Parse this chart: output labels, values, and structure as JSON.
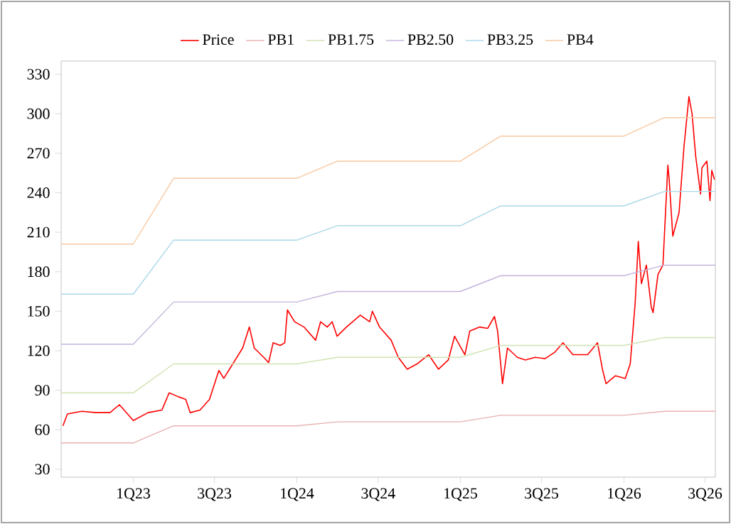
{
  "chart_data": {
    "type": "line",
    "legend": "top",
    "grid": false,
    "marker": "none",
    "line_style": "solid",
    "xlim": [
      "2022-07-24",
      "2026-07-24"
    ],
    "ylim": [
      24,
      340
    ],
    "xticks": [
      {
        "value": "2023-01-01",
        "label": "1Q23"
      },
      {
        "value": "2023-07-01",
        "label": "3Q23"
      },
      {
        "value": "2024-01-01",
        "label": "1Q24"
      },
      {
        "value": "2024-07-01",
        "label": "3Q24"
      },
      {
        "value": "2025-01-01",
        "label": "1Q25"
      },
      {
        "value": "2025-07-01",
        "label": "3Q25"
      },
      {
        "value": "2026-01-01",
        "label": "1Q26"
      },
      {
        "value": "2026-07-01",
        "label": "3Q26"
      }
    ],
    "yticks": [
      30,
      60,
      90,
      120,
      150,
      180,
      210,
      240,
      270,
      300,
      330
    ],
    "series": [
      {
        "name": "Price",
        "color": "#ff0000",
        "x": [
          "2022-07-28",
          "2022-08-07",
          "2022-09-08",
          "2022-10-10",
          "2022-11-10",
          "2022-12-01",
          "2023-01-01",
          "2023-02-03",
          "2023-03-06",
          "2023-03-22",
          "2023-04-12",
          "2023-04-28",
          "2023-05-08",
          "2023-05-30",
          "2023-06-20",
          "2023-07-11",
          "2023-07-22",
          "2023-08-11",
          "2023-09-02",
          "2023-09-17",
          "2023-09-28",
          "2023-10-19",
          "2023-10-30",
          "2023-11-09",
          "2023-11-25",
          "2023-12-05",
          "2023-12-11",
          "2023-12-27",
          "2024-01-17",
          "2024-02-12",
          "2024-02-23",
          "2024-03-09",
          "2024-03-20",
          "2024-03-31",
          "2024-04-21",
          "2024-05-22",
          "2024-06-12",
          "2024-06-18",
          "2024-07-04",
          "2024-07-30",
          "2024-08-15",
          "2024-09-04",
          "2024-09-26",
          "2024-10-22",
          "2024-11-13",
          "2024-12-05",
          "2024-12-19",
          "2025-01-11",
          "2025-01-22",
          "2025-02-13",
          "2025-03-03",
          "2025-03-18",
          "2025-03-25",
          "2025-04-05",
          "2025-04-16",
          "2025-05-08",
          "2025-05-26",
          "2025-06-17",
          "2025-07-09",
          "2025-07-31",
          "2025-08-18",
          "2025-09-09",
          "2025-10-12",
          "2025-11-03",
          "2025-11-14",
          "2025-11-22",
          "2025-12-13",
          "2026-01-04",
          "2026-01-15",
          "2026-01-26",
          "2026-02-02",
          "2026-02-09",
          "2026-02-20",
          "2026-03-03",
          "2026-03-07",
          "2026-03-18",
          "2026-03-29",
          "2026-04-09",
          "2026-04-12",
          "2026-04-20",
          "2026-05-04",
          "2026-05-15",
          "2026-05-26",
          "2026-06-02",
          "2026-06-10",
          "2026-06-21",
          "2026-06-24",
          "2026-07-05",
          "2026-07-12",
          "2026-07-16",
          "2026-07-22"
        ],
        "values": [
          63,
          72,
          74,
          73,
          73,
          79,
          67,
          73,
          75,
          88,
          85,
          83,
          73,
          75,
          83,
          105,
          99,
          110,
          122,
          138,
          122,
          115,
          111,
          126,
          124,
          126,
          151,
          142,
          138,
          128,
          142,
          138,
          142,
          131,
          138,
          147,
          142,
          150,
          138,
          128,
          115,
          106,
          110,
          117,
          106,
          113,
          131,
          117,
          135,
          138,
          137,
          146,
          135,
          95,
          122,
          115,
          113,
          115,
          114,
          119,
          126,
          117,
          117,
          126,
          106,
          95,
          101,
          99,
          110,
          156,
          203,
          171,
          185,
          153,
          149,
          178,
          185,
          261,
          250,
          207,
          225,
          275,
          313,
          300,
          268,
          239,
          259,
          264,
          234,
          257,
          250
        ]
      },
      {
        "name": "PB1",
        "color": "#e8b0b0",
        "x": [
          "2022-07-24",
          "2023-01-01",
          "2023-04-01",
          "2024-01-01",
          "2024-04-01",
          "2025-01-01",
          "2025-04-01",
          "2026-01-01",
          "2026-04-01",
          "2026-07-24"
        ],
        "values": [
          50,
          50,
          63,
          63,
          66,
          66,
          71,
          71,
          74,
          74
        ]
      },
      {
        "name": "PB1.75",
        "color": "#d0e2b0",
        "x": [
          "2022-07-24",
          "2023-01-01",
          "2023-04-01",
          "2024-01-01",
          "2024-04-01",
          "2025-01-01",
          "2025-04-01",
          "2026-01-01",
          "2026-04-01",
          "2026-07-24"
        ],
        "values": [
          88,
          88,
          110,
          110,
          115,
          115,
          124,
          124,
          130,
          130
        ]
      },
      {
        "name": "PB2.50",
        "color": "#c4b4dc",
        "x": [
          "2022-07-24",
          "2023-01-01",
          "2023-04-01",
          "2024-01-01",
          "2024-04-01",
          "2025-01-01",
          "2025-04-01",
          "2026-01-01",
          "2026-04-01",
          "2026-07-24"
        ],
        "values": [
          125,
          125,
          157,
          157,
          165,
          165,
          177,
          177,
          185,
          185
        ]
      },
      {
        "name": "PB3.25",
        "color": "#a8d8e8",
        "x": [
          "2022-07-24",
          "2023-01-01",
          "2023-04-01",
          "2024-01-01",
          "2024-04-01",
          "2025-01-01",
          "2025-04-01",
          "2026-01-01",
          "2026-04-01",
          "2026-07-24"
        ],
        "values": [
          163,
          163,
          204,
          204,
          215,
          215,
          230,
          230,
          241,
          241
        ]
      },
      {
        "name": "PB4",
        "color": "#f8c8a0",
        "x": [
          "2022-07-24",
          "2023-01-01",
          "2023-04-01",
          "2024-01-01",
          "2024-04-01",
          "2025-01-01",
          "2025-04-01",
          "2026-01-01",
          "2026-04-01",
          "2026-07-24"
        ],
        "values": [
          201,
          201,
          251,
          251,
          264,
          264,
          283,
          283,
          297,
          297
        ]
      }
    ]
  }
}
